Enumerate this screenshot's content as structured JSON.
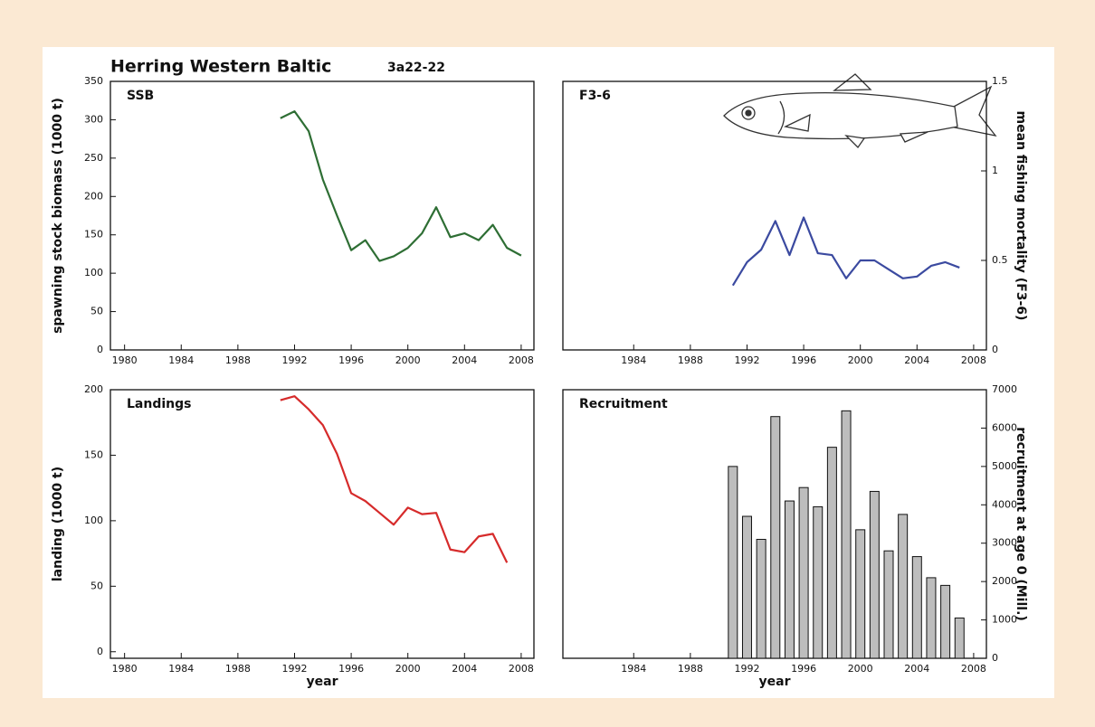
{
  "header": {
    "title": "Herring Western Baltic",
    "subtitle": "3a22-22"
  },
  "chart_data": [
    {
      "type": "line",
      "title": "SSB",
      "ylabel": "spawning stock biomass (1000 t)",
      "y_axis_side": "left",
      "color": "#2e6e34",
      "x": [
        1991,
        1992,
        1993,
        1994,
        1995,
        1996,
        1997,
        1998,
        1999,
        2000,
        2001,
        2002,
        2003,
        2004,
        2005,
        2006,
        2007,
        2008
      ],
      "values": [
        302,
        311,
        285,
        222,
        175,
        130,
        143,
        116,
        122,
        133,
        152,
        186,
        147,
        152,
        143,
        163,
        133,
        123
      ],
      "xlim": [
        1979,
        2008.9
      ],
      "xticks": [
        1980,
        1984,
        1988,
        1992,
        1996,
        2000,
        2004,
        2008
      ],
      "ylim": [
        0,
        350
      ],
      "yticks": [
        0,
        50,
        100,
        150,
        200,
        250,
        300,
        350
      ]
    },
    {
      "type": "line",
      "title": "F3-6",
      "ylabel": "mean fishing mortality (F3-6)",
      "y_axis_side": "right",
      "color": "#3b4aa0",
      "x": [
        1991,
        1992,
        1993,
        1994,
        1995,
        1996,
        1997,
        1998,
        1999,
        2000,
        2001,
        2002,
        2003,
        2004,
        2005,
        2006,
        2007
      ],
      "values": [
        0.36,
        0.49,
        0.56,
        0.72,
        0.53,
        0.74,
        0.54,
        0.53,
        0.4,
        0.5,
        0.5,
        0.45,
        0.4,
        0.41,
        0.47,
        0.49,
        0.46
      ],
      "xlim": [
        1979,
        2008.9
      ],
      "xticks": [
        1984,
        1988,
        1992,
        1996,
        2000,
        2004,
        2008
      ],
      "ylim": [
        0,
        1.5
      ],
      "yticks": [
        0,
        0.5,
        1,
        1.5
      ]
    },
    {
      "type": "line",
      "title": "Landings",
      "ylabel": "landing (1000 t)",
      "xlabel": "year",
      "y_axis_side": "left",
      "color": "#d62b2b",
      "x": [
        1991,
        1992,
        1993,
        1994,
        1995,
        1996,
        1997,
        1998,
        1999,
        2000,
        2001,
        2002,
        2003,
        2004,
        2005,
        2006,
        2007
      ],
      "values": [
        192,
        195,
        185,
        173,
        151,
        121,
        115,
        106,
        97,
        110,
        105,
        106,
        78,
        76,
        88,
        90,
        68
      ],
      "xlim": [
        1979,
        2008.9
      ],
      "xticks": [
        1980,
        1984,
        1988,
        1992,
        1996,
        2000,
        2004,
        2008
      ],
      "ylim": [
        -5,
        200
      ],
      "yticks": [
        0,
        50,
        100,
        150,
        200
      ]
    },
    {
      "type": "bar",
      "title": "Recruitment",
      "ylabel": "recruitment at age 0 (Mill.)",
      "xlabel": "year",
      "y_axis_side": "right",
      "color": "#bdbdbd",
      "x": [
        1991,
        1992,
        1993,
        1994,
        1995,
        1996,
        1997,
        1998,
        1999,
        2000,
        2001,
        2002,
        2003,
        2004,
        2005,
        2006,
        2007
      ],
      "values": [
        5000,
        3700,
        3100,
        6300,
        4100,
        4450,
        3950,
        5500,
        6450,
        3350,
        4350,
        2800,
        3750,
        2650,
        2100,
        1900,
        1050
      ],
      "xlim": [
        1979,
        2008.9
      ],
      "xticks": [
        1984,
        1988,
        1992,
        1996,
        2000,
        2004,
        2008
      ],
      "ylim": [
        0,
        7000
      ],
      "yticks": [
        0,
        1000,
        2000,
        3000,
        4000,
        5000,
        6000,
        7000
      ]
    }
  ]
}
